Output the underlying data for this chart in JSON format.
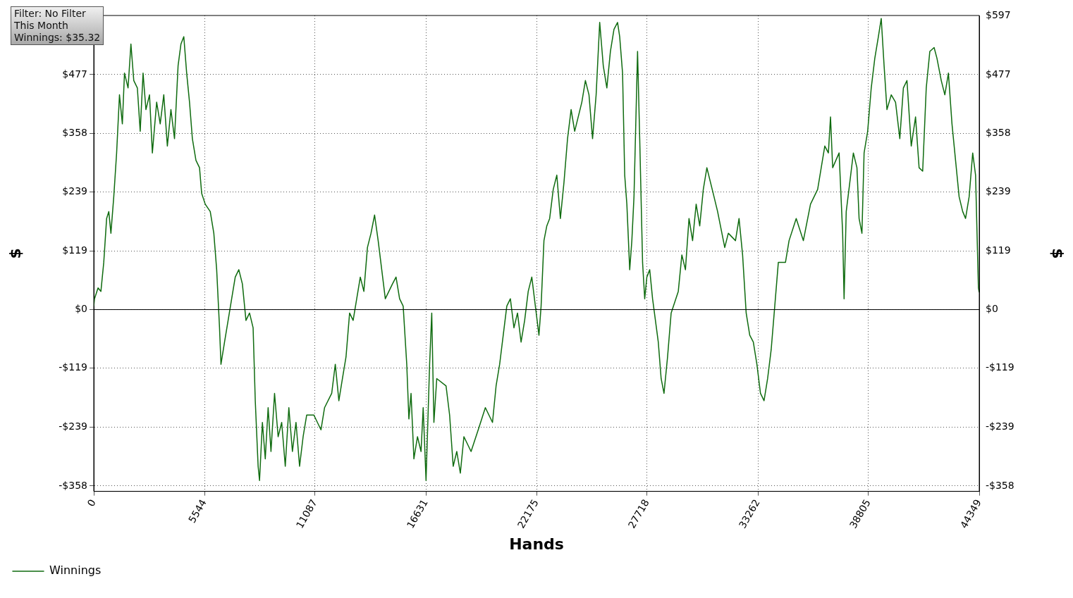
{
  "chart_data": {
    "type": "line",
    "xlabel": "Hands",
    "ylabel": "$",
    "y2label": "$",
    "annotations": [
      "Filter: No Filter",
      "This Month",
      "Winnings: $35.32"
    ],
    "x": [
      0,
      36,
      215,
      358,
      501,
      644,
      752,
      859,
      1002,
      1145,
      1288,
      1432,
      1539,
      1718,
      1861,
      2004,
      2183,
      2326,
      2469,
      2613,
      2792,
      2935,
      3150,
      3328,
      3507,
      3686,
      3865,
      4044,
      4223,
      4366,
      4510,
      4653,
      4796,
      4939,
      5118,
      5297,
      5404,
      5583,
      5834,
      6013,
      6156,
      6299,
      6371,
      6550,
      6729,
      6907,
      7086,
      7265,
      7444,
      7623,
      7802,
      7981,
      8089,
      8232,
      8303,
      8446,
      8590,
      8733,
      8876,
      9055,
      9234,
      9413,
      9592,
      9771,
      9950,
      10129,
      10308,
      10486,
      10665,
      11023,
      11381,
      11560,
      11918,
      12097,
      12276,
      12455,
      12634,
      12813,
      12991,
      13170,
      13349,
      13528,
      13707,
      13886,
      14065,
      14244,
      14423,
      14602,
      14960,
      15139,
      15318,
      15497,
      15676,
      15783,
      15891,
      16034,
      16213,
      16392,
      16499,
      16642,
      16821,
      16928,
      17036,
      17179,
      17644,
      17823,
      18002,
      18181,
      18360,
      18539,
      18897,
      19255,
      19613,
      19971,
      20150,
      20329,
      20508,
      20687,
      20866,
      21045,
      21223,
      21402,
      21581,
      21760,
      21939,
      22118,
      22297,
      22405,
      22548,
      22691,
      22834,
      23013,
      23192,
      23371,
      23550,
      23729,
      23908,
      24087,
      24445,
      24624,
      24803,
      24982,
      25161,
      25340,
      25519,
      25698,
      25876,
      26055,
      26234,
      26341,
      26485,
      26592,
      26700,
      26843,
      26950,
      27057,
      27236,
      27344,
      27487,
      27594,
      27701,
      27845,
      27988,
      28274,
      28417,
      28560,
      28739,
      28918,
      29276,
      29455,
      29634,
      29813,
      29992,
      30171,
      30350,
      30529,
      30708,
      31066,
      31245,
      31603,
      31782,
      32140,
      32319,
      32497,
      32676,
      32855,
      33034,
      33213,
      33392,
      33571,
      33750,
      33929,
      34108,
      34287,
      34645,
      34824,
      35182,
      35540,
      35898,
      36256,
      36435,
      36614,
      36793,
      36900,
      37008,
      37330,
      37508,
      37580,
      37687,
      37866,
      38045,
      38224,
      38331,
      38474,
      38582,
      38761,
      38940,
      39118,
      39297,
      39441,
      39584,
      39727,
      39942,
      40157,
      40371,
      40550,
      40729,
      40944,
      41159,
      41337,
      41516,
      41695,
      41874,
      42089,
      42232,
      42447,
      42626,
      42805,
      42984,
      43163,
      43342,
      43521,
      43664,
      43843,
      44022,
      44165,
      44308,
      44349
    ],
    "series": [
      {
        "name": "Winnings",
        "color": "#0f6b0f",
        "values": [
          7,
          22,
          44,
          37,
          96,
          185,
          199,
          155,
          229,
          318,
          436,
          377,
          480,
          450,
          539,
          465,
          450,
          362,
          480,
          406,
          436,
          318,
          421,
          377,
          436,
          332,
          406,
          347,
          495,
          539,
          554,
          480,
          421,
          347,
          303,
          288,
          236,
          214,
          199,
          155,
          81,
          -37,
          -111,
          -66,
          -22,
          22,
          66,
          81,
          52,
          -22,
          -7,
          -37,
          -185,
          -318,
          -347,
          -229,
          -303,
          -199,
          -288,
          -170,
          -258,
          -229,
          -318,
          -199,
          -288,
          -229,
          -318,
          -258,
          -214,
          -214,
          -244,
          -199,
          -170,
          -111,
          -185,
          -140,
          -96,
          -7,
          -22,
          22,
          66,
          37,
          126,
          155,
          192,
          140,
          81,
          22,
          52,
          66,
          22,
          7,
          -111,
          -222,
          -170,
          -303,
          -258,
          -288,
          -199,
          -347,
          -111,
          -7,
          -229,
          -140,
          -155,
          -214,
          -318,
          -288,
          -332,
          -258,
          -288,
          -244,
          -199,
          -229,
          -155,
          -111,
          -52,
          7,
          22,
          -37,
          -7,
          -66,
          -22,
          37,
          66,
          7,
          -52,
          7,
          140,
          170,
          185,
          244,
          273,
          185,
          258,
          347,
          406,
          362,
          421,
          465,
          436,
          347,
          436,
          583,
          495,
          450,
          524,
          569,
          583,
          554,
          480,
          273,
          214,
          81,
          140,
          229,
          524,
          347,
          96,
          22,
          66,
          81,
          22,
          -66,
          -140,
          -170,
          -96,
          -7,
          37,
          111,
          81,
          185,
          140,
          214,
          170,
          244,
          288,
          229,
          199,
          126,
          155,
          140,
          185,
          111,
          -7,
          -52,
          -66,
          -111,
          -170,
          -185,
          -140,
          -81,
          7,
          96,
          96,
          140,
          185,
          140,
          214,
          244,
          288,
          332,
          318,
          391,
          288,
          318,
          155,
          22,
          199,
          258,
          318,
          288,
          185,
          155,
          318,
          362,
          450,
          510,
          554,
          591,
          495,
          406,
          436,
          421,
          347,
          450,
          465,
          332,
          391,
          288,
          281,
          450,
          524,
          532,
          510,
          465,
          436,
          480,
          377,
          303,
          229,
          199,
          185,
          229,
          318,
          273,
          44,
          35
        ]
      }
    ],
    "xlim": [
      0,
      44349
    ],
    "xticks": [
      0,
      5544,
      11087,
      16631,
      22175,
      27718,
      33262,
      38805,
      44349
    ],
    "ylim": [
      -369,
      597
    ],
    "yticks": [
      {
        "value": 477,
        "label": "$477"
      },
      {
        "value": 358,
        "label": "$358"
      },
      {
        "value": 239,
        "label": "$239"
      },
      {
        "value": 119,
        "label": "$119"
      },
      {
        "value": 0,
        "label": "$0"
      },
      {
        "value": -119,
        "label": "-$119"
      },
      {
        "value": -239,
        "label": "-$239"
      },
      {
        "value": -358,
        "label": "-$358"
      }
    ],
    "y2lim": [
      -369,
      597
    ],
    "y2ticks": [
      {
        "value": 597,
        "label": "$597"
      },
      {
        "value": 477,
        "label": "$477"
      },
      {
        "value": 358,
        "label": "$358"
      },
      {
        "value": 239,
        "label": "$239"
      },
      {
        "value": 119,
        "label": "$119"
      },
      {
        "value": 0,
        "label": "$0"
      },
      {
        "value": -119,
        "label": "-$119"
      },
      {
        "value": -239,
        "label": "-$239"
      },
      {
        "value": -358,
        "label": "-$358"
      }
    ],
    "grid": true,
    "legend": "bottom left",
    "ref_lines": [
      {
        "axis": "y",
        "value": 0,
        "color": "#000000"
      }
    ]
  }
}
